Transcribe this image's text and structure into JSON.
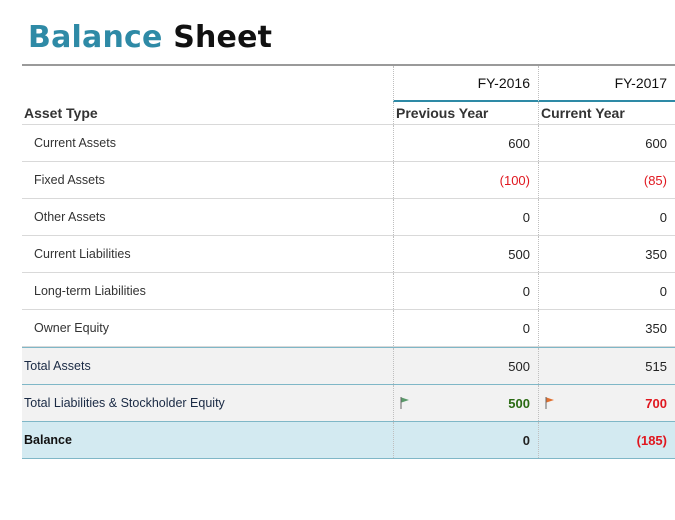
{
  "title_part1": "Balance",
  "title_part2": "Sheet",
  "headers": {
    "fy_prev": "FY-2016",
    "fy_curr": "FY-2017",
    "asset_type": "Asset Type",
    "previous_year": "Previous Year",
    "current_year": "Current Year"
  },
  "rows": [
    {
      "label": "Current Assets",
      "prev": "600",
      "curr": "600"
    },
    {
      "label": "Fixed Assets",
      "prev": "(100)",
      "curr": "(85)"
    },
    {
      "label": "Other Assets",
      "prev": "0",
      "curr": "0"
    },
    {
      "label": "Current Liabilities",
      "prev": "500",
      "curr": "350"
    },
    {
      "label": "Long-term Liabilities",
      "prev": "0",
      "curr": "0"
    },
    {
      "label": "Owner Equity",
      "prev": "0",
      "curr": "350"
    }
  ],
  "total_assets": {
    "label": "Total Assets",
    "prev": "500",
    "curr": "515"
  },
  "total_liabilities": {
    "label": "Total Liabilities & Stockholder Equity",
    "prev": "500",
    "curr": "700"
  },
  "balance": {
    "label": "Balance",
    "prev": "0",
    "curr": "(185)"
  },
  "colors": {
    "accent": "#2e8aa6",
    "negative": "#e0171f",
    "flag_green": "#5a9a6a",
    "flag_red": "#e07030"
  },
  "icons": {
    "prev_flag": "green-flag-icon",
    "curr_flag": "red-flag-icon"
  }
}
